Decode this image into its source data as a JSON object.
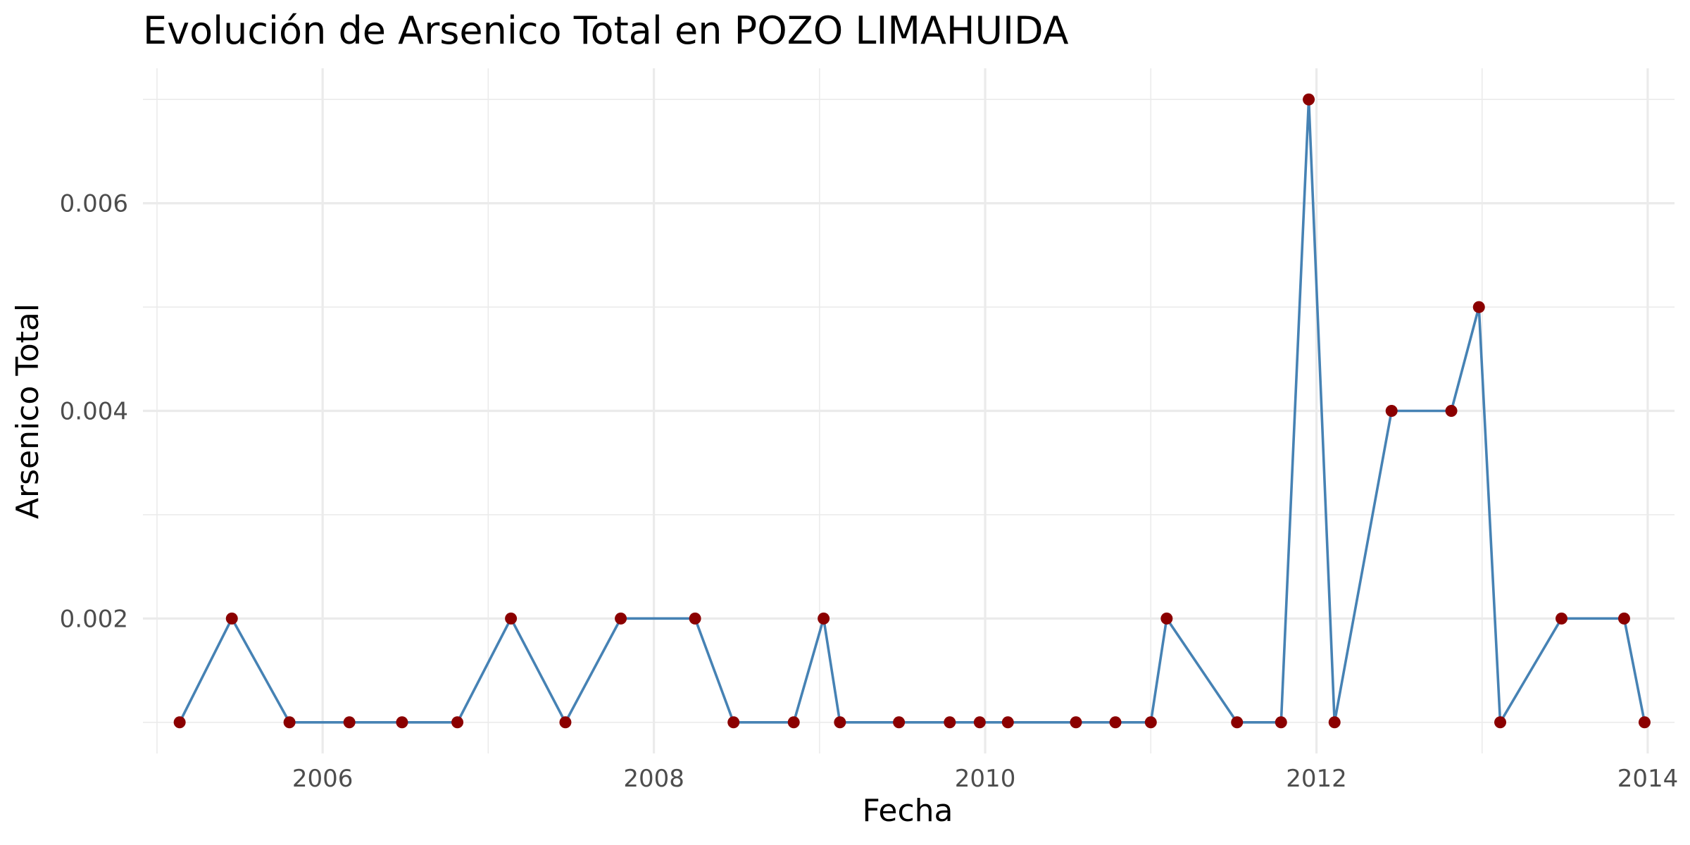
{
  "chart_data": {
    "type": "line",
    "title": "Evolución de Arsenico Total en POZO LIMAHUIDA",
    "xlabel": "Fecha",
    "ylabel": "Arsenico Total",
    "x_type": "date",
    "x_ticks": [
      "2006-01-01",
      "2008-01-01",
      "2010-01-01",
      "2012-01-01",
      "2014-01-01"
    ],
    "x_tick_labels": [
      "2006",
      "2008",
      "2010",
      "2012",
      "2014"
    ],
    "y_ticks": [
      0.002,
      0.004,
      0.006
    ],
    "y_tick_labels": [
      "0.002",
      "0.004",
      "0.006"
    ],
    "xlim": [
      "2004-12-01",
      "2014-03-01"
    ],
    "ylim": [
      0.0007,
      0.0073
    ],
    "grid": true,
    "line_color": "#4682B4",
    "point_color": "#8B0000",
    "series": [
      {
        "x": [
          "2005-02-20",
          "2005-06-15",
          "2005-10-20",
          "2006-03-01",
          "2006-06-25",
          "2006-10-25",
          "2007-02-20",
          "2007-06-20",
          "2007-10-20",
          "2008-04-01",
          "2008-06-25",
          "2008-11-05",
          "2009-01-10",
          "2009-02-15",
          "2009-06-25",
          "2009-10-15",
          "2009-12-20",
          "2010-02-20",
          "2010-07-20",
          "2010-10-15",
          "2011-01-01",
          "2011-02-05",
          "2011-07-10",
          "2011-10-15",
          "2011-12-15",
          "2012-02-10",
          "2012-06-15",
          "2012-10-25",
          "2012-12-25",
          "2013-02-10",
          "2013-06-25",
          "2013-11-10",
          "2013-12-25"
        ],
        "values": [
          0.001,
          0.002,
          0.001,
          0.001,
          0.001,
          0.001,
          0.002,
          0.001,
          0.002,
          0.002,
          0.001,
          0.001,
          0.002,
          0.001,
          0.001,
          0.001,
          0.001,
          0.001,
          0.001,
          0.001,
          0.001,
          0.002,
          0.001,
          0.001,
          0.007,
          0.001,
          0.004,
          0.004,
          0.005,
          0.001,
          0.002,
          0.002,
          0.001
        ]
      }
    ]
  }
}
